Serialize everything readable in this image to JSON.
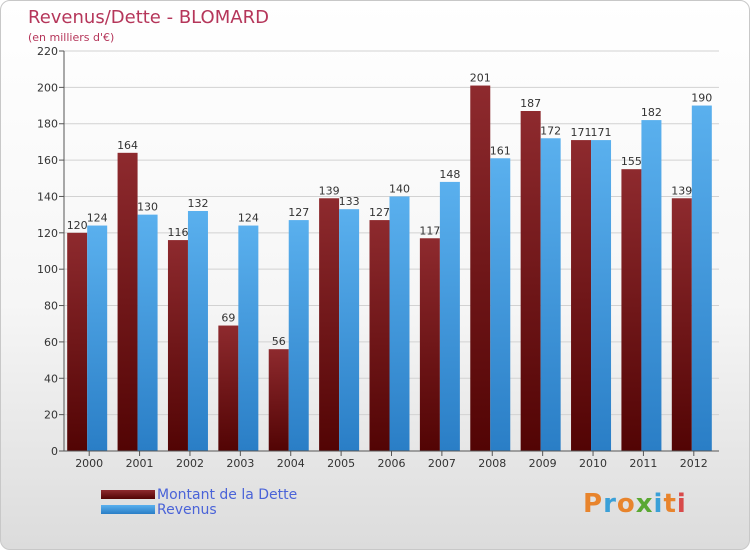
{
  "title": "Revenus/Dette - BLOMARD",
  "subtitle": "(en milliers d'€)",
  "logo": {
    "text": "Proxiti",
    "letter_colors": [
      "#e8842c",
      "#3aa0d8",
      "#e8842c",
      "#5aa832",
      "#3aa0d8",
      "#e8842c",
      "#d84a4a"
    ]
  },
  "chart_data": {
    "type": "bar",
    "categories": [
      "2000",
      "2001",
      "2002",
      "2003",
      "2004",
      "2005",
      "2006",
      "2007",
      "2008",
      "2009",
      "2010",
      "2011",
      "2012"
    ],
    "series": [
      {
        "name": "Montant de la Dette",
        "color": "#7a1c1c",
        "values": [
          120,
          164,
          116,
          69,
          56,
          139,
          127,
          117,
          201,
          187,
          171,
          155,
          139
        ]
      },
      {
        "name": "Revenus",
        "color": "#3c9ae4",
        "values": [
          124,
          130,
          132,
          124,
          127,
          133,
          140,
          148,
          161,
          172,
          171,
          182,
          190
        ]
      }
    ],
    "ylim": [
      0,
      220
    ],
    "yticks": [
      0,
      20,
      40,
      60,
      80,
      100,
      120,
      140,
      160,
      180,
      200,
      220
    ],
    "grid": true,
    "legend_position": "bottom-left"
  }
}
